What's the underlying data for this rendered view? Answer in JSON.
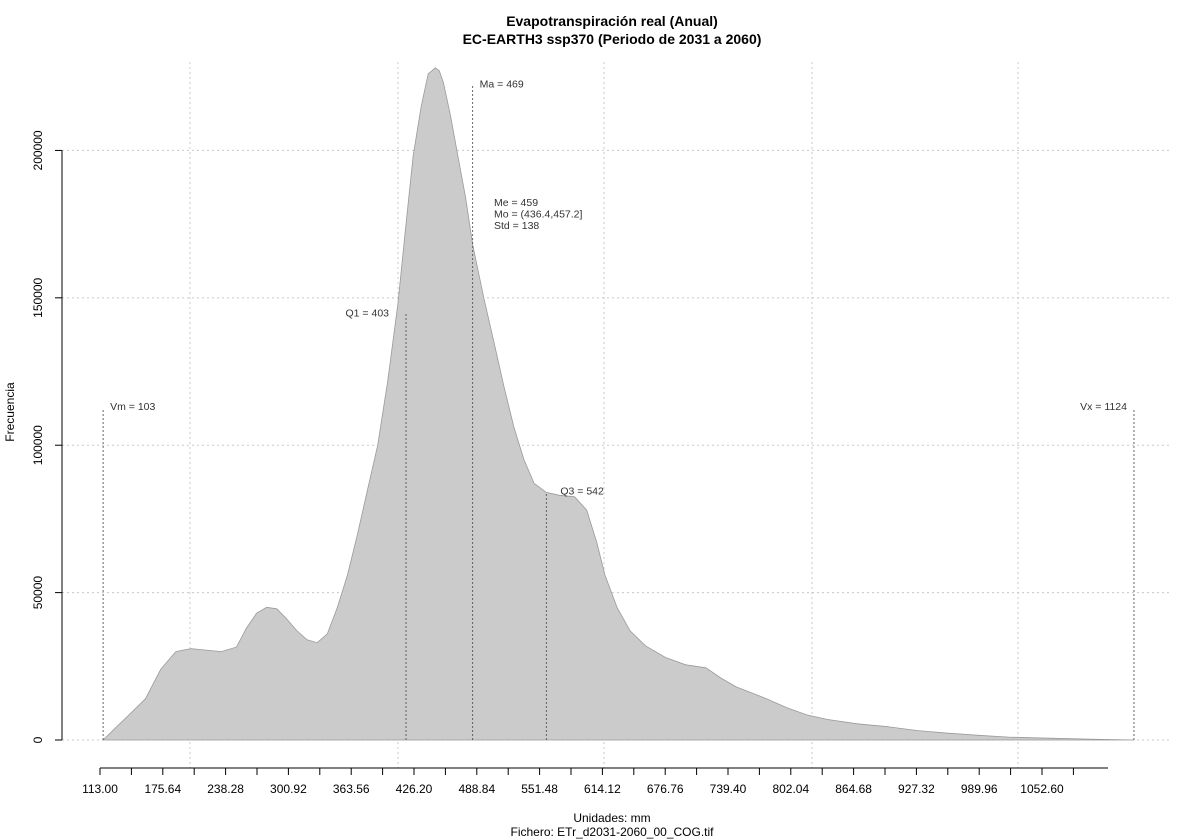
{
  "chart_data": {
    "type": "area",
    "title": "Evapotranspiración real (Anual)",
    "subtitle": "EC-EARTH3 ssp370 (Periodo de 2031 a 2060)",
    "xlabel": "Unidades: mm",
    "file_label": "Fichero: ETr_d2031-2060_00_COG.tif",
    "ylabel": "Frecuencia",
    "xlim": [
      90,
      1128
    ],
    "ylim": [
      0,
      230000
    ],
    "x_ticks": [
      "113.00",
      "175.64",
      "238.28",
      "300.92",
      "363.56",
      "426.20",
      "488.84",
      "551.48",
      "614.12",
      "676.76",
      "739.40",
      "802.04",
      "864.68",
      "927.32",
      "989.96",
      "1052.60"
    ],
    "y_ticks": [
      "0",
      "50000",
      "100000",
      "150000",
      "200000"
    ],
    "grid": true,
    "series": [
      {
        "x": [
          103,
          115,
          130,
          145,
          160,
          175,
          190,
          205,
          220,
          235,
          245,
          255,
          265,
          275,
          285,
          295,
          305,
          315,
          325,
          335,
          345,
          355,
          365,
          375,
          385,
          395,
          403,
          410,
          418,
          425,
          432,
          436,
          440,
          447,
          455,
          462,
          469,
          480,
          490,
          500,
          510,
          520,
          530,
          542,
          555,
          570,
          582,
          592,
          600,
          612,
          625,
          640,
          660,
          680,
          700,
          715,
          730,
          745,
          760,
          780,
          800,
          820,
          850,
          880,
          910,
          940,
          970,
          1000,
          1040,
          1080,
          1124
        ],
        "y": [
          0,
          4000,
          9000,
          14000,
          24000,
          30000,
          31000,
          30500,
          30000,
          31500,
          38000,
          43000,
          45000,
          44500,
          41000,
          37000,
          34000,
          33000,
          36000,
          45000,
          56000,
          70000,
          85000,
          100000,
          122000,
          148000,
          175000,
          198000,
          215000,
          226000,
          228000,
          227000,
          223000,
          212000,
          197000,
          184000,
          168000,
          150000,
          135000,
          120000,
          106000,
          95000,
          87000,
          84000,
          83000,
          82500,
          78000,
          67000,
          56000,
          45000,
          37000,
          32000,
          28000,
          25500,
          24500,
          21000,
          18000,
          16000,
          14000,
          11000,
          8500,
          7000,
          5500,
          4500,
          3200,
          2300,
          1600,
          1000,
          600,
          300,
          0
        ]
      }
    ],
    "reference_lines": [
      {
        "label": "Vm = 103",
        "x": 103,
        "height": 112000
      },
      {
        "label": "Q1 = 403",
        "x": 403,
        "height": 145000
      },
      {
        "label": "Ma = 469",
        "x": 469,
        "height": 222000
      },
      {
        "label": "Q3 = 542",
        "x": 542,
        "height": 84000
      },
      {
        "label": "Vx = 1124",
        "x": 1124,
        "height": 112000
      }
    ],
    "stats": [
      "Me = 459",
      "Mo = (436.4,457.2]",
      "Std = 138"
    ]
  }
}
